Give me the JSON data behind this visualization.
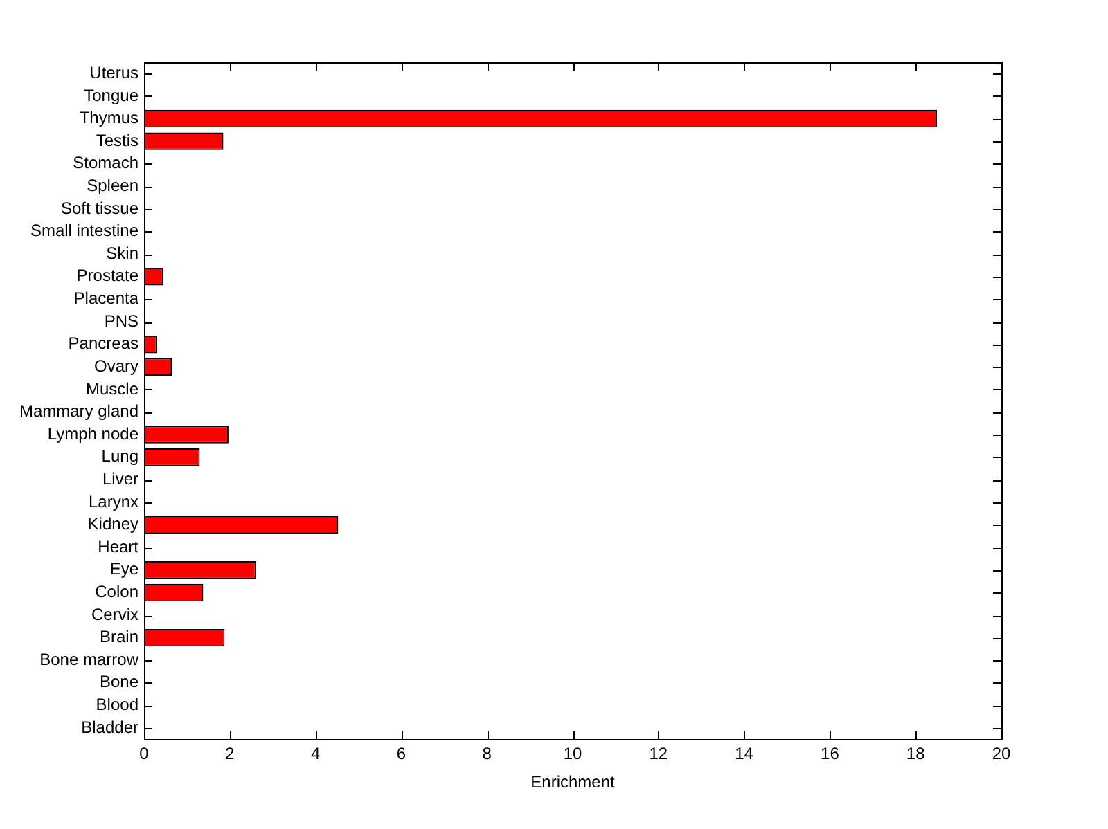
{
  "chart_data": {
    "type": "bar",
    "orientation": "horizontal",
    "xlabel": "Enrichment",
    "categories": [
      "Uterus",
      "Tongue",
      "Thymus",
      "Testis",
      "Stomach",
      "Spleen",
      "Soft tissue",
      "Small intestine",
      "Skin",
      "Prostate",
      "Placenta",
      "PNS",
      "Pancreas",
      "Ovary",
      "Muscle",
      "Mammary gland",
      "Lymph node",
      "Lung",
      "Liver",
      "Larynx",
      "Kidney",
      "Heart",
      "Eye",
      "Colon",
      "Cervix",
      "Brain",
      "Bone marrow",
      "Bone",
      "Blood",
      "Bladder"
    ],
    "values": [
      0,
      0,
      18.5,
      1.85,
      0,
      0,
      0,
      0,
      0,
      0.45,
      0,
      0,
      0.3,
      0.65,
      0,
      0,
      1.97,
      1.3,
      0,
      0,
      4.53,
      0,
      2.61,
      1.38,
      0,
      1.88,
      0,
      0,
      0,
      0
    ],
    "color": "#ff0000",
    "xlim": [
      0,
      20
    ],
    "xticks": [
      0,
      2,
      4,
      6,
      8,
      10,
      12,
      14,
      16,
      18,
      20
    ],
    "grid": false,
    "legend": false
  }
}
